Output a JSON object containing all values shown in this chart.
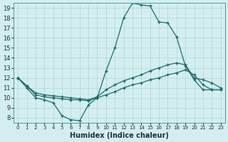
{
  "xlabel": "Humidex (Indice chaleur)",
  "background_color": "#d4eef0",
  "grid_color": "#afd4d6",
  "line_color": "#1a6b6b",
  "xlim": [
    -0.5,
    23.5
  ],
  "ylim": [
    7.5,
    19.5
  ],
  "xticks": [
    0,
    1,
    2,
    3,
    4,
    5,
    6,
    7,
    8,
    9,
    10,
    11,
    12,
    13,
    14,
    15,
    16,
    17,
    18,
    19,
    20,
    21,
    22,
    23
  ],
  "yticks": [
    8,
    9,
    10,
    11,
    12,
    13,
    14,
    15,
    16,
    17,
    18,
    19
  ],
  "line1_x": [
    0,
    1,
    2,
    3,
    4,
    5,
    6,
    7,
    8,
    9,
    10,
    11,
    12,
    13,
    14,
    15,
    16,
    17,
    18,
    19,
    20,
    21,
    22,
    23
  ],
  "line1_y": [
    12.0,
    11.0,
    10.0,
    9.8,
    9.5,
    8.2,
    7.8,
    7.7,
    9.3,
    10.0,
    12.7,
    15.0,
    18.0,
    19.5,
    19.3,
    19.2,
    17.6,
    17.5,
    16.1,
    13.2,
    11.8,
    10.8,
    10.8,
    10.8
  ],
  "line2_x": [
    0,
    1,
    2,
    3,
    4,
    5,
    6,
    7,
    8,
    9,
    10,
    11,
    12,
    13,
    14,
    15,
    16,
    17,
    18,
    19,
    20,
    21,
    22,
    23
  ],
  "line2_y": [
    12.0,
    11.2,
    10.5,
    10.3,
    10.2,
    10.1,
    10.0,
    9.9,
    9.8,
    10.1,
    10.8,
    11.3,
    11.7,
    12.0,
    12.3,
    12.7,
    13.0,
    13.3,
    13.5,
    13.3,
    12.0,
    11.8,
    11.5,
    11.0
  ],
  "line3_x": [
    0,
    1,
    2,
    3,
    4,
    5,
    6,
    7,
    8,
    9,
    10,
    11,
    12,
    13,
    14,
    15,
    16,
    17,
    18,
    19,
    20,
    21,
    22,
    23
  ],
  "line3_y": [
    12.0,
    11.2,
    10.3,
    10.1,
    10.0,
    9.9,
    9.8,
    9.8,
    9.7,
    10.0,
    10.3,
    10.6,
    11.0,
    11.3,
    11.5,
    11.8,
    12.0,
    12.3,
    12.5,
    12.8,
    12.3,
    11.3,
    10.8,
    10.8
  ],
  "marker": "+",
  "markersize": 3,
  "linewidth": 0.9
}
